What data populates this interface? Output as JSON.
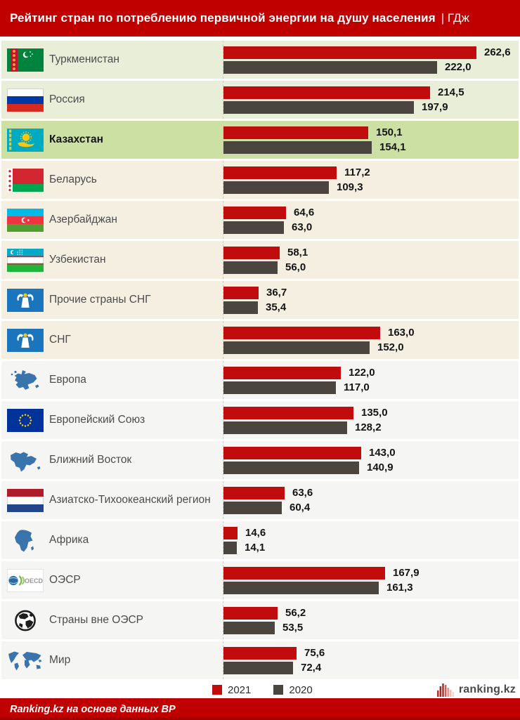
{
  "header": {
    "title": "Рейтинг стран по потреблению первичной энергии на душу населения",
    "unit_suffix": "| ГДж"
  },
  "legend": [
    {
      "label": "2021",
      "color": "#c00c0c"
    },
    {
      "label": "2020",
      "color": "#4a453f"
    }
  ],
  "logo": {
    "text": "ranking.kz"
  },
  "footer": {
    "source_note": "Ranking.kz на основе данных BP"
  },
  "colors": {
    "header_bg": "#c00000",
    "bar_2021": "#c00c0c",
    "bar_2020": "#4a453f",
    "row_green": "#e9eed9",
    "row_highlight": "#cde0a3",
    "row_beige": "#f5efe2",
    "row_gray": "#f5f5f4",
    "value_text": "#141414",
    "label_text": "#4c4c4c"
  },
  "chart_data": {
    "type": "bar",
    "orientation": "horizontal",
    "title": "Рейтинг стран по потреблению первичной энергии на душу населения",
    "unit": "ГДж",
    "legend_position": "bottom",
    "series_names": [
      "2021",
      "2020"
    ],
    "max_value": 262.6,
    "value_decimal_separator": ",",
    "rows": [
      {
        "label": "Туркменистан",
        "icon": "turkmenistan",
        "group": "green",
        "v2021": 262.6,
        "v2020": 222.0
      },
      {
        "label": "Россия",
        "icon": "russia",
        "group": "green",
        "v2021": 214.5,
        "v2020": 197.9
      },
      {
        "label": "Казахстан",
        "icon": "kazakhstan",
        "group": "highlight",
        "v2021": 150.1,
        "v2020": 154.1
      },
      {
        "label": "Беларусь",
        "icon": "belarus",
        "group": "beige",
        "v2021": 117.2,
        "v2020": 109.3
      },
      {
        "label": "Азербайджан",
        "icon": "azerbaijan",
        "group": "beige",
        "v2021": 64.6,
        "v2020": 63.0
      },
      {
        "label": "Узбекистан",
        "icon": "uzbekistan",
        "group": "beige",
        "v2021": 58.1,
        "v2020": 56.0
      },
      {
        "label": "Прочие страны СНГ",
        "icon": "cis",
        "group": "beige",
        "v2021": 36.7,
        "v2020": 35.4
      },
      {
        "label": "СНГ",
        "icon": "cis",
        "group": "beige",
        "v2021": 163.0,
        "v2020": 152.0
      },
      {
        "label": "Европа",
        "icon": "europe-map",
        "group": "gray",
        "v2021": 122.0,
        "v2020": 117.0
      },
      {
        "label": "Европейский Союз",
        "icon": "eu",
        "group": "gray",
        "v2021": 135.0,
        "v2020": 128.2
      },
      {
        "label": "Ближний Восток",
        "icon": "middle-east-map",
        "group": "gray",
        "v2021": 143.0,
        "v2020": 140.9
      },
      {
        "label": "Азиатско-Тихоокеанский регион",
        "icon": "apac-flag",
        "group": "gray",
        "v2021": 63.6,
        "v2020": 60.4
      },
      {
        "label": "Африка",
        "icon": "africa-map",
        "group": "gray",
        "v2021": 14.6,
        "v2020": 14.1
      },
      {
        "label": "ОЭСР",
        "icon": "oecd-logo",
        "group": "gray",
        "v2021": 167.9,
        "v2020": 161.3
      },
      {
        "label": "Страны вне ОЭСР",
        "icon": "globe",
        "group": "gray",
        "v2021": 56.2,
        "v2020": 53.5
      },
      {
        "label": "Мир",
        "icon": "world-map",
        "group": "gray",
        "v2021": 75.6,
        "v2020": 72.4
      }
    ]
  }
}
